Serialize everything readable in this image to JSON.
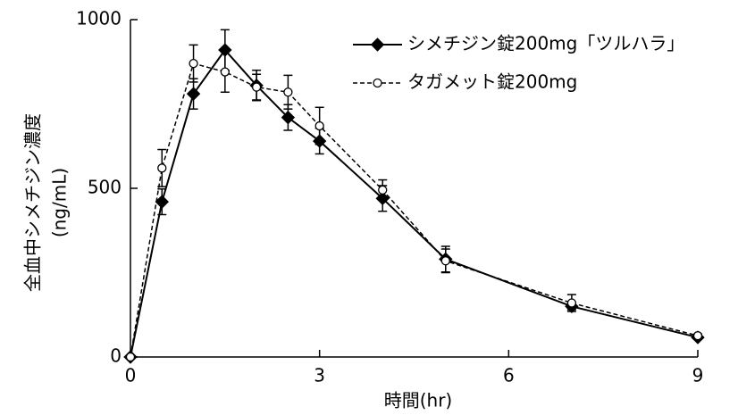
{
  "chart_data": {
    "type": "line",
    "xlabel": "時間(hr)",
    "ylabel": "全血中シメチジン濃度",
    "ylabel_unit": "(ng/mL)",
    "xlim": [
      0,
      9
    ],
    "ylim": [
      0,
      1000
    ],
    "xticks": [
      "0",
      "3",
      "6",
      "9"
    ],
    "yticks": [
      "0",
      "500",
      "1000"
    ],
    "grid": false,
    "legend_position": "top-right",
    "series": [
      {
        "name": "シメチジン錠200mg「ツルハラ」",
        "style": "solid",
        "marker": "filled-diamond",
        "color": "#000000",
        "points": [
          {
            "x": 0,
            "y": 0,
            "err": 0
          },
          {
            "x": 0.5,
            "y": 460,
            "err": 38
          },
          {
            "x": 1,
            "y": 780,
            "err": 45
          },
          {
            "x": 1.5,
            "y": 910,
            "err": 60
          },
          {
            "x": 2,
            "y": 805,
            "err": 45
          },
          {
            "x": 2.5,
            "y": 710,
            "err": 38
          },
          {
            "x": 3,
            "y": 640,
            "err": 38
          },
          {
            "x": 4,
            "y": 470,
            "err": 38
          },
          {
            "x": 5,
            "y": 290,
            "err": 38
          },
          {
            "x": 7,
            "y": 150,
            "err": 10
          },
          {
            "x": 9,
            "y": 58,
            "err": 5
          }
        ]
      },
      {
        "name": "タガメット錠200mg",
        "style": "dashed",
        "marker": "open-circle",
        "color": "#000000",
        "points": [
          {
            "x": 0,
            "y": 0,
            "err": 0
          },
          {
            "x": 0.5,
            "y": 560,
            "err": 55
          },
          {
            "x": 1,
            "y": 870,
            "err": 55
          },
          {
            "x": 1.5,
            "y": 845,
            "err": 60
          },
          {
            "x": 2,
            "y": 800,
            "err": 38
          },
          {
            "x": 2.5,
            "y": 785,
            "err": 50
          },
          {
            "x": 3,
            "y": 685,
            "err": 55
          },
          {
            "x": 4,
            "y": 495,
            "err": 30
          },
          {
            "x": 5,
            "y": 285,
            "err": 35
          },
          {
            "x": 7,
            "y": 160,
            "err": 25
          },
          {
            "x": 9,
            "y": 63,
            "err": 5
          }
        ]
      }
    ]
  }
}
